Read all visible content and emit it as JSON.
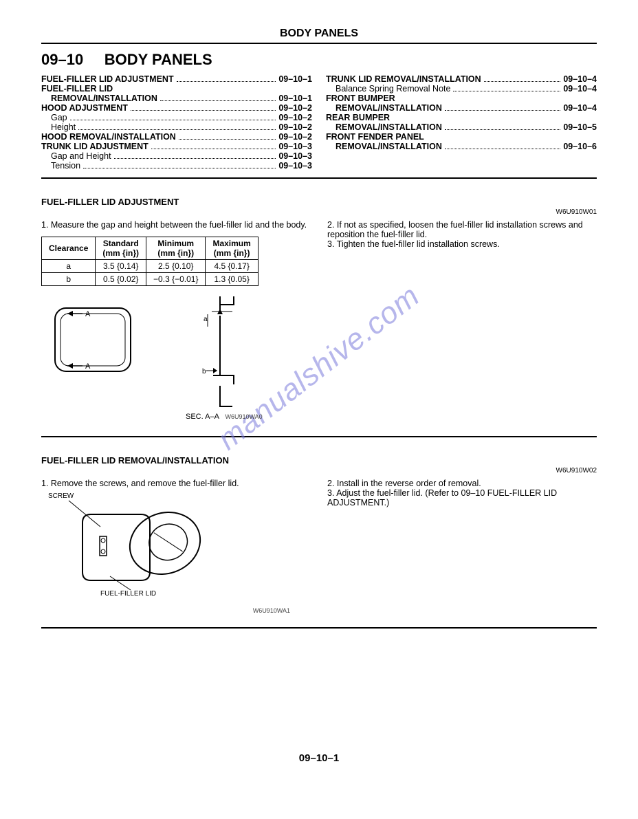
{
  "header": {
    "title": "BODY PANELS"
  },
  "section": {
    "number": "09–10",
    "title": "BODY PANELS"
  },
  "toc_left": [
    {
      "label": "FUEL-FILLER LID ADJUSTMENT",
      "page": "09–10–1",
      "indent": 0,
      "bold": true
    },
    {
      "label": "FUEL-FILLER LID",
      "page": "",
      "indent": 0,
      "bold": true
    },
    {
      "label": "REMOVAL/INSTALLATION",
      "page": "09–10–1",
      "indent": 1,
      "bold": true
    },
    {
      "label": "HOOD ADJUSTMENT",
      "page": "09–10–2",
      "indent": 0,
      "bold": true
    },
    {
      "label": "Gap",
      "page": "09–10–2",
      "indent": 1,
      "bold": false
    },
    {
      "label": "Height",
      "page": "09–10–2",
      "indent": 1,
      "bold": false
    },
    {
      "label": "HOOD REMOVAL/INSTALLATION",
      "page": "09–10–2",
      "indent": 0,
      "bold": true
    },
    {
      "label": "TRUNK LID ADJUSTMENT",
      "page": "09–10–3",
      "indent": 0,
      "bold": true
    },
    {
      "label": "Gap and Height",
      "page": "09–10–3",
      "indent": 1,
      "bold": false
    },
    {
      "label": "Tension",
      "page": "09–10–3",
      "indent": 1,
      "bold": false
    }
  ],
  "toc_right": [
    {
      "label": "TRUNK LID REMOVAL/INSTALLATION",
      "page": "09–10–4",
      "indent": 0,
      "bold": true
    },
    {
      "label": "Balance Spring Removal Note",
      "page": "09–10–4",
      "indent": 1,
      "bold": false
    },
    {
      "label": "FRONT BUMPER",
      "page": "",
      "indent": 0,
      "bold": true
    },
    {
      "label": "REMOVAL/INSTALLATION",
      "page": "09–10–4",
      "indent": 1,
      "bold": true
    },
    {
      "label": "REAR BUMPER",
      "page": "",
      "indent": 0,
      "bold": true
    },
    {
      "label": "REMOVAL/INSTALLATION",
      "page": "09–10–5",
      "indent": 1,
      "bold": true
    },
    {
      "label": "FRONT FENDER PANEL",
      "page": "",
      "indent": 0,
      "bold": true
    },
    {
      "label": "REMOVAL/INSTALLATION",
      "page": "09–10–6",
      "indent": 1,
      "bold": true
    }
  ],
  "sec1": {
    "title": "FUEL-FILLER LID ADJUSTMENT",
    "ref": "W6U910W01",
    "left_step": "1. Measure the gap and height between the fuel-filler lid and the body.",
    "right_step2": "2. If not as specified, loosen the fuel-filler lid installation screws and reposition the fuel-filler lid.",
    "right_step3": "3. Tighten the fuel-filler lid installation screws.",
    "table": {
      "headers": [
        "Clearance",
        "Standard (mm {in})",
        "Minimum (mm {in})",
        "Maximum (mm {in})"
      ],
      "rows": [
        [
          "a",
          "3.5 {0.14}",
          "2.5 {0.10}",
          "4.5 {0.17}"
        ],
        [
          "b",
          "0.5 {0.02}",
          "−0.3 {−0.01}",
          "1.3 {0.05}"
        ]
      ]
    },
    "fig_caption": "SEC. A–A",
    "fig_code": "W6U910WA0"
  },
  "sec2": {
    "title": "FUEL-FILLER LID REMOVAL/INSTALLATION",
    "ref": "W6U910W02",
    "left_step": "1. Remove the screws, and remove the fuel-filler lid.",
    "right_step2": "2. Install in the reverse order of removal.",
    "right_step3": "3. Adjust the fuel-filler lid. (Refer to 09–10 FUEL-FILLER LID ADJUSTMENT.)",
    "label_screw": "SCREW",
    "label_lid": "FUEL-FILLER LID",
    "fig_code": "W6U910WA1"
  },
  "watermark": "manualshive.com",
  "footer": "09–10–1"
}
